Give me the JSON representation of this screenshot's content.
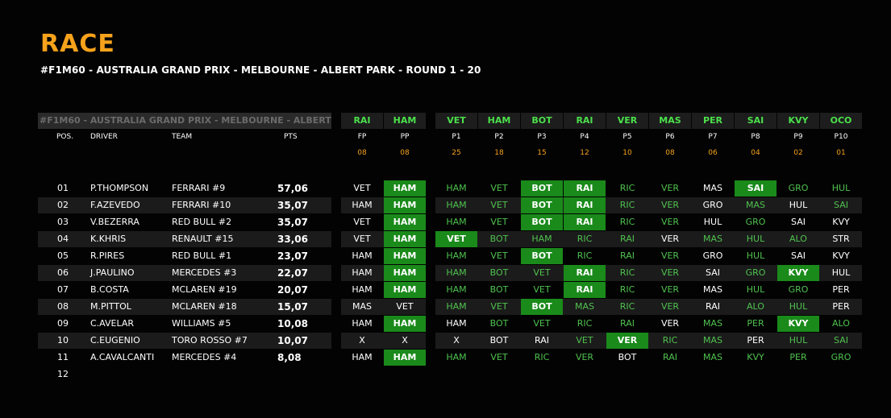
{
  "title": "RACE",
  "subtitle": "#F1M60 - AUSTRALIA GRAND PRIX - MELBOURNE - ALBERT PARK - ROUND 1 - 20",
  "table_title": "#F1M60 - AUSTRALIA GRAND PRIX - MELBOURNE - ALBERT PARK",
  "columns": {
    "pos": "POS.",
    "driver": "DRIVER",
    "team": "TEAM",
    "pts": "PTS"
  },
  "pred_cols": [
    {
      "code": "RAI",
      "label": "FP",
      "pts": "08"
    },
    {
      "code": "HAM",
      "label": "PP",
      "pts": "08"
    },
    {
      "code": "VET",
      "label": "P1",
      "pts": "25"
    },
    {
      "code": "HAM",
      "label": "P2",
      "pts": "18"
    },
    {
      "code": "BOT",
      "label": "P3",
      "pts": "15"
    },
    {
      "code": "RAI",
      "label": "P4",
      "pts": "12"
    },
    {
      "code": "VER",
      "label": "P5",
      "pts": "10"
    },
    {
      "code": "MAS",
      "label": "P6",
      "pts": "08"
    },
    {
      "code": "PER",
      "label": "P7",
      "pts": "06"
    },
    {
      "code": "SAI",
      "label": "P8",
      "pts": "04"
    },
    {
      "code": "KVY",
      "label": "P9",
      "pts": "02"
    },
    {
      "code": "OCO",
      "label": "P10",
      "pts": "01"
    }
  ],
  "rows": [
    {
      "pos": "01",
      "driver": "P.THOMPSON",
      "team": "FERRARI #9",
      "pts": "57,06",
      "picks": [
        [
          "VET",
          "p"
        ],
        [
          "HAM",
          "w"
        ],
        [
          "HAM",
          "g"
        ],
        [
          "VET",
          "g"
        ],
        [
          "BOT",
          "w"
        ],
        [
          "RAI",
          "w"
        ],
        [
          "RIC",
          "g"
        ],
        [
          "VER",
          "g"
        ],
        [
          "MAS",
          "p"
        ],
        [
          "SAI",
          "w"
        ],
        [
          "GRO",
          "g"
        ],
        [
          "HUL",
          "g"
        ]
      ]
    },
    {
      "pos": "02",
      "driver": "F.AZEVEDO",
      "team": "FERRARI #10",
      "pts": "35,07",
      "picks": [
        [
          "HAM",
          "p"
        ],
        [
          "HAM",
          "w"
        ],
        [
          "HAM",
          "g"
        ],
        [
          "VET",
          "g"
        ],
        [
          "BOT",
          "w"
        ],
        [
          "RAI",
          "w"
        ],
        [
          "RIC",
          "g"
        ],
        [
          "VER",
          "g"
        ],
        [
          "GRO",
          "p"
        ],
        [
          "MAS",
          "g"
        ],
        [
          "HUL",
          "p"
        ],
        [
          "SAI",
          "g"
        ]
      ]
    },
    {
      "pos": "03",
      "driver": "V.BEZERRA",
      "team": "RED BULL #2",
      "pts": "35,07",
      "picks": [
        [
          "VET",
          "p"
        ],
        [
          "HAM",
          "w"
        ],
        [
          "HAM",
          "g"
        ],
        [
          "VET",
          "g"
        ],
        [
          "BOT",
          "w"
        ],
        [
          "RAI",
          "w"
        ],
        [
          "RIC",
          "g"
        ],
        [
          "VER",
          "g"
        ],
        [
          "HUL",
          "p"
        ],
        [
          "GRO",
          "g"
        ],
        [
          "SAI",
          "p"
        ],
        [
          "KVY",
          "p"
        ]
      ]
    },
    {
      "pos": "04",
      "driver": "K.KHRIS",
      "team": "RENAULT #15",
      "pts": "33,06",
      "picks": [
        [
          "VET",
          "p"
        ],
        [
          "HAM",
          "w"
        ],
        [
          "VET",
          "w"
        ],
        [
          "BOT",
          "g"
        ],
        [
          "HAM",
          "g"
        ],
        [
          "RIC",
          "g"
        ],
        [
          "RAI",
          "g"
        ],
        [
          "VER",
          "p"
        ],
        [
          "MAS",
          "g"
        ],
        [
          "HUL",
          "g"
        ],
        [
          "ALO",
          "g"
        ],
        [
          "STR",
          "p"
        ]
      ]
    },
    {
      "pos": "05",
      "driver": "R.PIRES",
      "team": "RED BULL #1",
      "pts": "23,07",
      "picks": [
        [
          "HAM",
          "p"
        ],
        [
          "HAM",
          "w"
        ],
        [
          "HAM",
          "g"
        ],
        [
          "VET",
          "g"
        ],
        [
          "BOT",
          "w"
        ],
        [
          "RIC",
          "g"
        ],
        [
          "RAI",
          "g"
        ],
        [
          "VER",
          "g"
        ],
        [
          "GRO",
          "p"
        ],
        [
          "HUL",
          "g"
        ],
        [
          "SAI",
          "p"
        ],
        [
          "KVY",
          "p"
        ]
      ]
    },
    {
      "pos": "06",
      "driver": "J.PAULINO",
      "team": "MERCEDES #3",
      "pts": "22,07",
      "picks": [
        [
          "HAM",
          "p"
        ],
        [
          "HAM",
          "w"
        ],
        [
          "HAM",
          "g"
        ],
        [
          "BOT",
          "g"
        ],
        [
          "VET",
          "g"
        ],
        [
          "RAI",
          "w"
        ],
        [
          "RIC",
          "g"
        ],
        [
          "VER",
          "g"
        ],
        [
          "SAI",
          "p"
        ],
        [
          "GRO",
          "g"
        ],
        [
          "KVY",
          "w"
        ],
        [
          "HUL",
          "p"
        ]
      ]
    },
    {
      "pos": "07",
      "driver": "B.COSTA",
      "team": "MCLAREN #19",
      "pts": "20,07",
      "picks": [
        [
          "HAM",
          "p"
        ],
        [
          "HAM",
          "w"
        ],
        [
          "HAM",
          "g"
        ],
        [
          "BOT",
          "g"
        ],
        [
          "VET",
          "g"
        ],
        [
          "RAI",
          "w"
        ],
        [
          "RIC",
          "g"
        ],
        [
          "VER",
          "g"
        ],
        [
          "MAS",
          "p"
        ],
        [
          "HUL",
          "g"
        ],
        [
          "GRO",
          "g"
        ],
        [
          "PER",
          "p"
        ]
      ]
    },
    {
      "pos": "08",
      "driver": "M.PITTOL",
      "team": "MCLAREN #18",
      "pts": "15,07",
      "picks": [
        [
          "MAS",
          "p"
        ],
        [
          "VET",
          "p"
        ],
        [
          "HAM",
          "g"
        ],
        [
          "VET",
          "g"
        ],
        [
          "BOT",
          "w"
        ],
        [
          "MAS",
          "g"
        ],
        [
          "RIC",
          "g"
        ],
        [
          "VER",
          "g"
        ],
        [
          "RAI",
          "p"
        ],
        [
          "ALO",
          "g"
        ],
        [
          "HUL",
          "g"
        ],
        [
          "PER",
          "p"
        ]
      ]
    },
    {
      "pos": "09",
      "driver": "C.AVELAR",
      "team": "WILLIAMS #5",
      "pts": "10,08",
      "picks": [
        [
          "HAM",
          "p"
        ],
        [
          "HAM",
          "w"
        ],
        [
          "HAM",
          "p"
        ],
        [
          "BOT",
          "g"
        ],
        [
          "VET",
          "g"
        ],
        [
          "RIC",
          "g"
        ],
        [
          "RAI",
          "g"
        ],
        [
          "VER",
          "p"
        ],
        [
          "MAS",
          "g"
        ],
        [
          "PER",
          "g"
        ],
        [
          "KVY",
          "w"
        ],
        [
          "ALO",
          "g"
        ]
      ]
    },
    {
      "pos": "10",
      "driver": "C.EUGENIO",
      "team": "TORO ROSSO #7",
      "pts": "10,07",
      "picks": [
        [
          "X",
          "p"
        ],
        [
          "X",
          "p"
        ],
        [
          "X",
          "p"
        ],
        [
          "BOT",
          "p"
        ],
        [
          "RAI",
          "p"
        ],
        [
          "VET",
          "g"
        ],
        [
          "VER",
          "w"
        ],
        [
          "RIC",
          "g"
        ],
        [
          "MAS",
          "g"
        ],
        [
          "PER",
          "p"
        ],
        [
          "HUL",
          "g"
        ],
        [
          "SAI",
          "g"
        ]
      ]
    },
    {
      "pos": "11",
      "driver": "A.CAVALCANTI",
      "team": "MERCEDES #4",
      "pts": "8,08",
      "picks": [
        [
          "HAM",
          "p"
        ],
        [
          "HAM",
          "w"
        ],
        [
          "HAM",
          "g"
        ],
        [
          "VET",
          "g"
        ],
        [
          "RIC",
          "g"
        ],
        [
          "VER",
          "g"
        ],
        [
          "BOT",
          "p"
        ],
        [
          "RAI",
          "g"
        ],
        [
          "MAS",
          "g"
        ],
        [
          "KVY",
          "g"
        ],
        [
          "PER",
          "g"
        ],
        [
          "GRO",
          "g"
        ]
      ]
    },
    {
      "pos": "12",
      "driver": "",
      "team": "",
      "pts": "",
      "picks": []
    }
  ]
}
